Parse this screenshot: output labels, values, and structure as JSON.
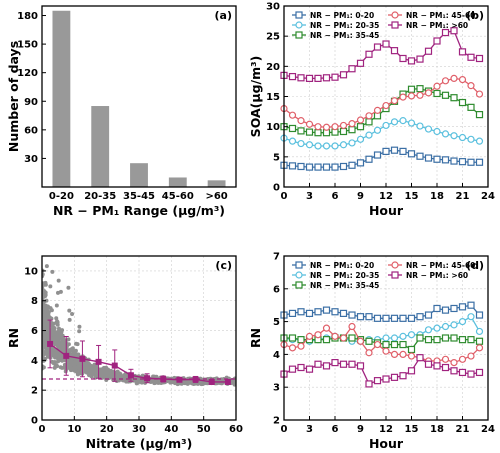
{
  "chart_data": [
    {
      "panel": "(a)",
      "type": "bar",
      "categories": [
        "0-20",
        "20-35",
        "35-45",
        "45-60",
        ">60"
      ],
      "values": [
        185,
        85,
        25,
        10,
        7
      ],
      "xlabel": "NR − PM₁ Range (μg/m³)",
      "ylabel": "Number of days",
      "ylim": [
        0,
        190
      ],
      "yticks": [
        30,
        60,
        90,
        120,
        150,
        180
      ],
      "bar_color": "#999999",
      "grid": false
    },
    {
      "panel": "(b)",
      "type": "line",
      "xlabel": "Hour",
      "ylabel": "SOA(μg/m³)",
      "xlim": [
        0,
        24
      ],
      "ylim": [
        0,
        30
      ],
      "xticks": [
        0,
        3,
        6,
        9,
        12,
        15,
        18,
        21,
        24
      ],
      "yticks": [
        0,
        5,
        10,
        15,
        20,
        25,
        30
      ],
      "grid": true,
      "legend_position": "top",
      "x": [
        0,
        1,
        2,
        3,
        4,
        5,
        6,
        7,
        8,
        9,
        10,
        11,
        12,
        13,
        14,
        15,
        16,
        17,
        18,
        19,
        20,
        21,
        22,
        23
      ],
      "series": [
        {
          "name": "NR − PM₁: 0-20",
          "color": "#3b6fa5",
          "marker": "square",
          "values": [
            3.6,
            3.5,
            3.4,
            3.3,
            3.3,
            3.3,
            3.3,
            3.4,
            3.6,
            4.0,
            4.6,
            5.3,
            5.9,
            6.1,
            5.9,
            5.5,
            5.1,
            4.8,
            4.6,
            4.5,
            4.3,
            4.2,
            4.1,
            4.1
          ]
        },
        {
          "name": "NR − PM₁: 20-35",
          "color": "#5bc0de",
          "marker": "circle",
          "values": [
            8.1,
            7.6,
            7.2,
            7.0,
            6.8,
            6.8,
            6.8,
            7.0,
            7.3,
            7.9,
            8.6,
            9.4,
            10.2,
            10.8,
            11.0,
            10.6,
            10.1,
            9.6,
            9.2,
            8.8,
            8.5,
            8.2,
            7.9,
            7.6
          ]
        },
        {
          "name": "NR − PM₁: 35-45",
          "color": "#2e8b2e",
          "marker": "square",
          "values": [
            10.0,
            9.7,
            9.3,
            9.1,
            9.0,
            9.0,
            9.1,
            9.2,
            9.5,
            10.0,
            10.8,
            11.8,
            13.0,
            14.2,
            15.4,
            16.2,
            16.3,
            15.9,
            15.5,
            15.2,
            14.8,
            14.0,
            13.2,
            12.0
          ]
        },
        {
          "name": "NR − PM₁: 45-60",
          "color": "#e0606a",
          "marker": "circle",
          "values": [
            13.0,
            11.9,
            11.0,
            10.4,
            10.0,
            9.9,
            10.0,
            10.2,
            10.5,
            11.1,
            11.8,
            12.7,
            13.5,
            14.3,
            14.9,
            15.1,
            15.2,
            15.6,
            16.7,
            17.6,
            18.0,
            17.8,
            16.8,
            15.4
          ]
        },
        {
          "name": "NR − PM₁: >60",
          "color": "#a0237f",
          "marker": "square",
          "values": [
            18.5,
            18.3,
            18.1,
            18.0,
            18.0,
            18.1,
            18.2,
            18.6,
            19.6,
            20.5,
            22.0,
            23.2,
            23.7,
            22.6,
            21.3,
            20.9,
            21.2,
            22.5,
            24.2,
            25.6,
            25.9,
            22.4,
            21.5,
            21.3
          ]
        }
      ]
    },
    {
      "panel": "(c)",
      "type": "scatter",
      "xlabel": "Nitrate (μg/m³)",
      "ylabel": "RN",
      "xlim": [
        0,
        60
      ],
      "ylim": [
        0,
        11
      ],
      "xticks": [
        0,
        10,
        20,
        30,
        40,
        50,
        60
      ],
      "yticks": [
        0,
        2,
        4,
        6,
        8,
        10
      ],
      "grid": true,
      "scatter_color": "#909090",
      "reference_line": {
        "y": 2.75,
        "color": "#a0237f",
        "style": "dashed"
      },
      "binned_mean": {
        "color": "#a0237f",
        "x": [
          2.5,
          7.5,
          12.5,
          17.5,
          22.5,
          27.5,
          32.5,
          37.5,
          42.5,
          47.5,
          52.5,
          57.5
        ],
        "y": [
          5.1,
          4.3,
          4.1,
          3.9,
          3.65,
          3.0,
          2.8,
          2.75,
          2.7,
          2.72,
          2.55,
          2.55
        ],
        "err": [
          1.6,
          1.3,
          1.2,
          1.1,
          1.05,
          0.4,
          0.3,
          0.2,
          0.15,
          0.2,
          0.15,
          0.15
        ]
      }
    },
    {
      "panel": "(d)",
      "type": "line",
      "xlabel": "Hour",
      "ylabel": "RN",
      "xlim": [
        0,
        24
      ],
      "ylim": [
        2,
        7
      ],
      "xticks": [
        0,
        3,
        6,
        9,
        12,
        15,
        18,
        21,
        24
      ],
      "yticks": [
        2,
        3,
        4,
        5,
        6,
        7
      ],
      "grid": true,
      "legend_position": "top",
      "x": [
        0,
        1,
        2,
        3,
        4,
        5,
        6,
        7,
        8,
        9,
        10,
        11,
        12,
        13,
        14,
        15,
        16,
        17,
        18,
        19,
        20,
        21,
        22,
        23
      ],
      "series": [
        {
          "name": "NR − PM₁: 0-20",
          "color": "#3b6fa5",
          "marker": "square",
          "values": [
            5.2,
            5.25,
            5.3,
            5.25,
            5.3,
            5.35,
            5.3,
            5.25,
            5.2,
            5.15,
            5.15,
            5.1,
            5.1,
            5.1,
            5.1,
            5.1,
            5.15,
            5.2,
            5.4,
            5.35,
            5.4,
            5.45,
            5.5,
            5.2
          ]
        },
        {
          "name": "NR − PM₁: 20-35",
          "color": "#5bc0de",
          "marker": "circle",
          "values": [
            4.5,
            4.45,
            4.45,
            4.4,
            4.45,
            4.5,
            4.55,
            4.5,
            4.4,
            4.4,
            4.45,
            4.45,
            4.5,
            4.5,
            4.55,
            4.6,
            4.6,
            4.75,
            4.8,
            4.85,
            4.9,
            5.0,
            5.15,
            4.7
          ]
        },
        {
          "name": "NR − PM₁: 35-45",
          "color": "#2e8b2e",
          "marker": "square",
          "values": [
            4.5,
            4.5,
            4.45,
            4.45,
            4.45,
            4.45,
            4.5,
            4.5,
            4.5,
            4.45,
            4.4,
            4.35,
            4.3,
            4.3,
            4.3,
            4.15,
            4.5,
            4.45,
            4.45,
            4.5,
            4.5,
            4.45,
            4.45,
            4.4
          ]
        },
        {
          "name": "NR − PM₁: 45-60",
          "color": "#e0606a",
          "marker": "circle",
          "values": [
            4.3,
            4.2,
            4.25,
            4.55,
            4.6,
            4.8,
            4.55,
            4.5,
            4.85,
            4.4,
            4.05,
            4.3,
            4.1,
            4.0,
            4.0,
            3.95,
            3.9,
            3.8,
            3.8,
            3.85,
            3.75,
            3.85,
            3.95,
            4.2
          ]
        },
        {
          "name": "NR − PM₁: >60",
          "color": "#a0237f",
          "marker": "square",
          "values": [
            3.4,
            3.55,
            3.6,
            3.55,
            3.7,
            3.65,
            3.75,
            3.7,
            3.7,
            3.65,
            3.1,
            3.2,
            3.25,
            3.3,
            3.35,
            3.5,
            3.9,
            3.7,
            3.65,
            3.6,
            3.5,
            3.45,
            3.4,
            3.45
          ]
        }
      ]
    }
  ]
}
